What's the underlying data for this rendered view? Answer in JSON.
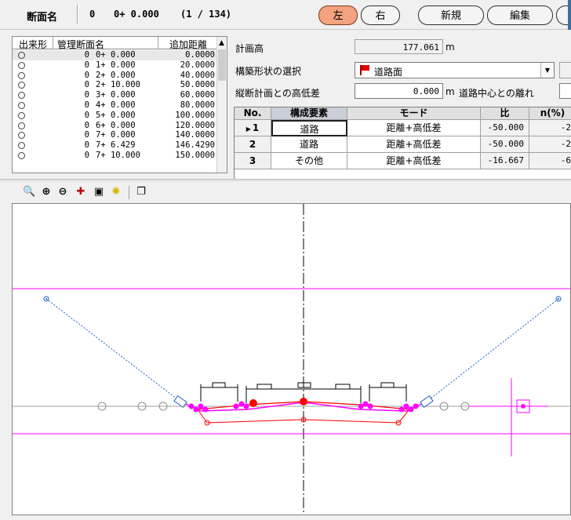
{
  "header": {
    "section_label": "断面名",
    "section_no": "0",
    "section_station": "0+ 0.000",
    "section_count": "(1 / 134)",
    "buttons": {
      "left": "左",
      "right": "右",
      "new": "新規",
      "edit": "編集"
    }
  },
  "list": {
    "columns": {
      "status": "出来形",
      "name": "管理断面名",
      "distance": "追加距離"
    },
    "rows": [
      {
        "no": "0",
        "station": "0+ 0.000",
        "distance": "0.0000"
      },
      {
        "no": "0",
        "station": "1+ 0.000",
        "distance": "20.0000"
      },
      {
        "no": "0",
        "station": "2+ 0.000",
        "distance": "40.0000"
      },
      {
        "no": "0",
        "station": "2+ 10.000",
        "distance": "50.0000"
      },
      {
        "no": "0",
        "station": "3+ 0.000",
        "distance": "60.0000"
      },
      {
        "no": "0",
        "station": "4+ 0.000",
        "distance": "80.0000"
      },
      {
        "no": "0",
        "station": "5+ 0.000",
        "distance": "100.0000"
      },
      {
        "no": "0",
        "station": "6+ 0.000",
        "distance": "120.0000"
      },
      {
        "no": "0",
        "station": "7+ 0.000",
        "distance": "140.0000"
      },
      {
        "no": "0",
        "station": "7+ 6.429",
        "distance": "146.4290"
      },
      {
        "no": "0",
        "station": "7+ 10.000",
        "distance": "150.0000"
      }
    ]
  },
  "props": {
    "plan_height_label": "計画高",
    "plan_height_value": "177.061",
    "unit_m": "m",
    "shape_label": "構築形状の選択",
    "shape_value": "道路面",
    "height_diff_label": "縦断計画との高低差",
    "height_diff_value": "0.000",
    "center_offset_label": "道路中心との離れ"
  },
  "table": {
    "headers": {
      "no": "No.",
      "element": "構成要素",
      "mode": "モード",
      "ratio": "比",
      "n": "n(%)"
    },
    "rows": [
      {
        "no": "1",
        "marker": "▶",
        "element": "道路",
        "mode": "距離+高低差",
        "ratio": "-50.000",
        "n": "-2"
      },
      {
        "no": "2",
        "element": "道路",
        "mode": "距離+高低差",
        "ratio": "-50.000",
        "n": "-2"
      },
      {
        "no": "3",
        "element": "その他",
        "mode": "距離+高低差",
        "ratio": "-16.667",
        "n": "-6"
      }
    ]
  },
  "toolbar": {
    "icons": [
      "zoom-window-icon",
      "zoom-in-icon",
      "zoom-out-icon",
      "pan-icon",
      "fit-icon",
      "light-icon",
      "copy-icon"
    ]
  },
  "colors": {
    "accent_button": "#f3a37f",
    "magenta": "#ff00ff",
    "red": "#ff0000",
    "blue_dotted": "#2060c0"
  }
}
